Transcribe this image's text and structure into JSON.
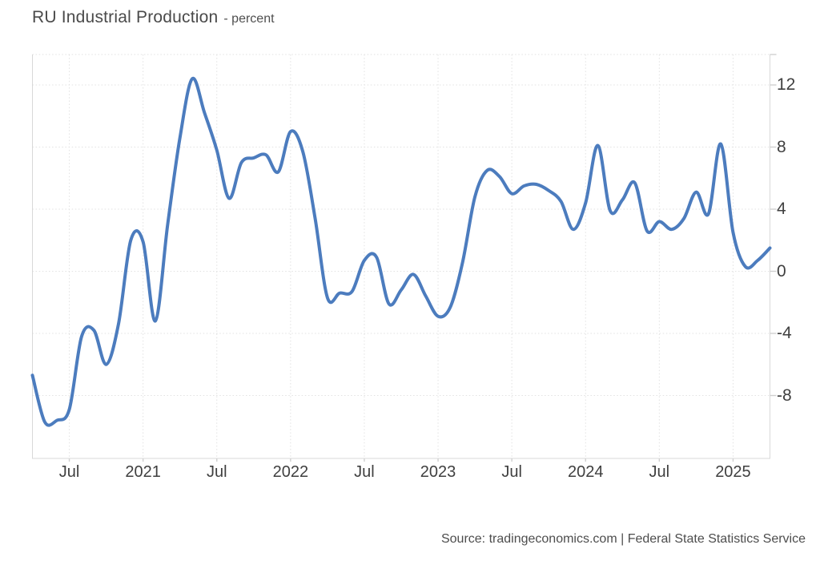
{
  "page": {
    "title": "RU Industrial Production",
    "subtitle": "- percent"
  },
  "source": {
    "text": "Source: tradingeconomics.com | Federal State Statistics Service"
  },
  "colors": {
    "line": "#4c7cbe",
    "grid": "#e2e2e2",
    "border": "#d8d8d8",
    "tick": "#cfcfcf",
    "axis_text": "#3f3f3f",
    "title_text": "#4a4a4a",
    "source_text": "#4d4d4d"
  },
  "chart_data": {
    "type": "line",
    "title": "RU Industrial Production",
    "ylabel": "percent",
    "frequency": "monthly",
    "x_start": "2020-04",
    "x_end": "2025-04",
    "grid": "dotted",
    "legend": "none",
    "ylim": [
      -12.1,
      14.0
    ],
    "x": [
      "2020-04",
      "2020-05",
      "2020-06",
      "2020-07",
      "2020-08",
      "2020-09",
      "2020-10",
      "2020-11",
      "2020-12",
      "2021-01",
      "2021-02",
      "2021-03",
      "2021-04",
      "2021-05",
      "2021-06",
      "2021-07",
      "2021-08",
      "2021-09",
      "2021-10",
      "2021-11",
      "2021-12",
      "2022-01",
      "2022-02",
      "2022-03",
      "2022-04",
      "2022-05",
      "2022-06",
      "2022-07",
      "2022-08",
      "2022-09",
      "2022-10",
      "2022-11",
      "2022-12",
      "2023-01",
      "2023-02",
      "2023-03",
      "2023-04",
      "2023-05",
      "2023-06",
      "2023-07",
      "2023-08",
      "2023-09",
      "2023-10",
      "2023-11",
      "2023-12",
      "2024-01",
      "2024-02",
      "2024-03",
      "2024-04",
      "2024-05",
      "2024-06",
      "2024-07",
      "2024-08",
      "2024-09",
      "2024-10",
      "2024-11",
      "2024-12",
      "2025-01",
      "2025-02",
      "2025-03",
      "2025-04"
    ],
    "values": [
      -6.7,
      -9.7,
      -9.6,
      -8.9,
      -4.2,
      -3.8,
      -6.0,
      -3.4,
      2.0,
      1.9,
      -3.2,
      3.0,
      8.6,
      12.4,
      10.2,
      7.8,
      4.7,
      7.0,
      7.3,
      7.5,
      6.4,
      9.0,
      7.7,
      3.4,
      -1.7,
      -1.4,
      -1.3,
      0.7,
      0.9,
      -2.1,
      -1.2,
      -0.2,
      -1.6,
      -2.9,
      -2.3,
      0.6,
      4.8,
      6.5,
      6.1,
      5.0,
      5.5,
      5.6,
      5.2,
      4.5,
      2.7,
      4.4,
      8.1,
      3.9,
      4.6,
      5.7,
      2.6,
      3.2,
      2.7,
      3.4,
      5.1,
      3.7,
      8.2,
      2.5,
      0.3,
      0.7,
      1.5
    ],
    "y_ticks": [
      {
        "label": "12",
        "value": 12
      },
      {
        "label": "8",
        "value": 8
      },
      {
        "label": "4",
        "value": 4
      },
      {
        "label": "0",
        "value": 0
      },
      {
        "label": "-4",
        "value": -4
      },
      {
        "label": "-8",
        "value": -8
      }
    ],
    "x_ticks": [
      {
        "label": "Jul",
        "month_index": 3
      },
      {
        "label": "2021",
        "month_index": 9
      },
      {
        "label": "Jul",
        "month_index": 15
      },
      {
        "label": "2022",
        "month_index": 21
      },
      {
        "label": "Jul",
        "month_index": 27
      },
      {
        "label": "2023",
        "month_index": 33
      },
      {
        "label": "Jul",
        "month_index": 39
      },
      {
        "label": "2024",
        "month_index": 45
      },
      {
        "label": "Jul",
        "month_index": 51
      },
      {
        "label": "2025",
        "month_index": 57
      }
    ]
  }
}
